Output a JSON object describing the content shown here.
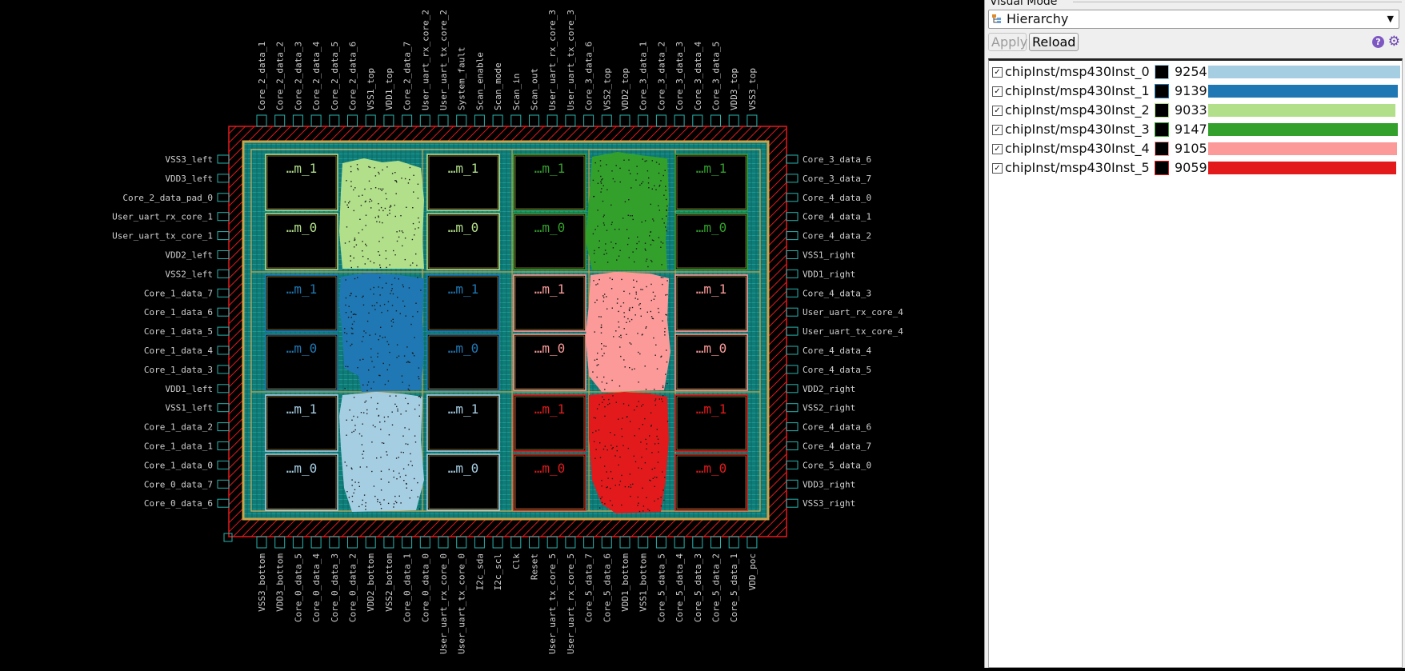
{
  "panel": {
    "title": "Visual Mode",
    "mode_select": "Hierarchy",
    "apply_label": "Apply",
    "reload_label": "Reload",
    "help_label": "?"
  },
  "instances": [
    {
      "name": "chipInst/msp430Inst_0",
      "count": "9254",
      "color": "#a6cee3",
      "bar_fraction": 1.0,
      "checked": true
    },
    {
      "name": "chipInst/msp430Inst_1",
      "count": "9139",
      "color": "#1f78b4",
      "bar_fraction": 0.9876,
      "checked": true
    },
    {
      "name": "chipInst/msp430Inst_2",
      "count": "9033",
      "color": "#b2df8a",
      "bar_fraction": 0.9761,
      "checked": true
    },
    {
      "name": "chipInst/msp430Inst_3",
      "count": "9147",
      "color": "#33a02c",
      "bar_fraction": 0.9884,
      "checked": true
    },
    {
      "name": "chipInst/msp430Inst_4",
      "count": "9105",
      "color": "#fb9a99",
      "bar_fraction": 0.9839,
      "checked": true
    },
    {
      "name": "chipInst/msp430Inst_5",
      "count": "9059",
      "color": "#e31a1c",
      "bar_fraction": 0.9789,
      "checked": true
    }
  ],
  "layout": {
    "top_pins": [
      "Core_2_data_1",
      "Core_2_data_2",
      "Core_2_data_3",
      "Core_2_data_4",
      "Core_2_data_5",
      "Core_2_data_6",
      "VSS1_top",
      "VDD1_top",
      "Core_2_data_7",
      "User_uart_rx_core_2",
      "User_uart_tx_core_2",
      "System_fault",
      "Scan_enable",
      "Scan_mode",
      "Scan_in",
      "Scan_out",
      "User_uart_rx_core_3",
      "User_uart_tx_core_3",
      "Core_3_data_6",
      "VSS2_top",
      "VDD2_top",
      "Core_3_data_1",
      "Core_3_data_2",
      "Core_3_data_3",
      "Core_3_data_4",
      "Core_3_data_5",
      "VDD3_top",
      "VSS3_top"
    ],
    "bottom_pins": [
      "VSS3_bottom",
      "VDD3_bottom",
      "Core_0_data_5",
      "Core_0_data_4",
      "Core_0_data_3",
      "Core_0_data_2",
      "VDD2_bottom",
      "VSS2_bottom",
      "Core_0_data_1",
      "Core_0_data_0",
      "User_uart_rx_core_0",
      "User_uart_tx_core_0",
      "I2c_sda",
      "I2c_scl",
      "Clk",
      "Reset",
      "User_uart_tx_core_5",
      "User_uart_rx_core_5",
      "Core_5_data_7",
      "Core_5_data_6",
      "VDD1_bottom",
      "VSS1_bottom",
      "Core_5_data_5",
      "Core_5_data_4",
      "Core_5_data_3",
      "Core_5_data_2",
      "Core_5_data_1",
      "VDD_poc"
    ],
    "left_pins": [
      "VSS3_left",
      "VDD3_left",
      "Core_2_data_pad_0",
      "User_uart_rx_core_1",
      "User_uart_tx_core_1",
      "VDD2_left",
      "VSS2_left",
      "Core_1_data_7",
      "Core_1_data_6",
      "Core_1_data_5",
      "Core_1_data_4",
      "Core_1_data_3",
      "VDD1_left",
      "VSS1_left",
      "Core_1_data_2",
      "Core_1_data_1",
      "Core_1_data_0",
      "Core_0_data_7",
      "Core_0_data_6"
    ],
    "right_pins": [
      "Core_3_data_6",
      "Core_3_data_7",
      "Core_4_data_0",
      "Core_4_data_1",
      "Core_4_data_2",
      "VSS1_right",
      "VDD1_right",
      "Core_4_data_3",
      "User_uart_rx_core_4",
      "User_uart_tx_core_4",
      "Core_4_data_4",
      "Core_4_data_5",
      "VDD2_right",
      "VSS2_right",
      "Core_4_data_6",
      "Core_4_data_7",
      "Core_5_data_0",
      "VDD3_right",
      "VSS3_right"
    ],
    "macro_labels": {
      "m1": "…m_1",
      "m0": "…m_0"
    },
    "macro_colors": {
      "inst0": "#a6cee3",
      "inst1": "#1f78b4",
      "inst2": "#b2df8a",
      "inst3": "#33a02c",
      "inst4": "#fb9a99",
      "inst5": "#e31a1c"
    }
  }
}
